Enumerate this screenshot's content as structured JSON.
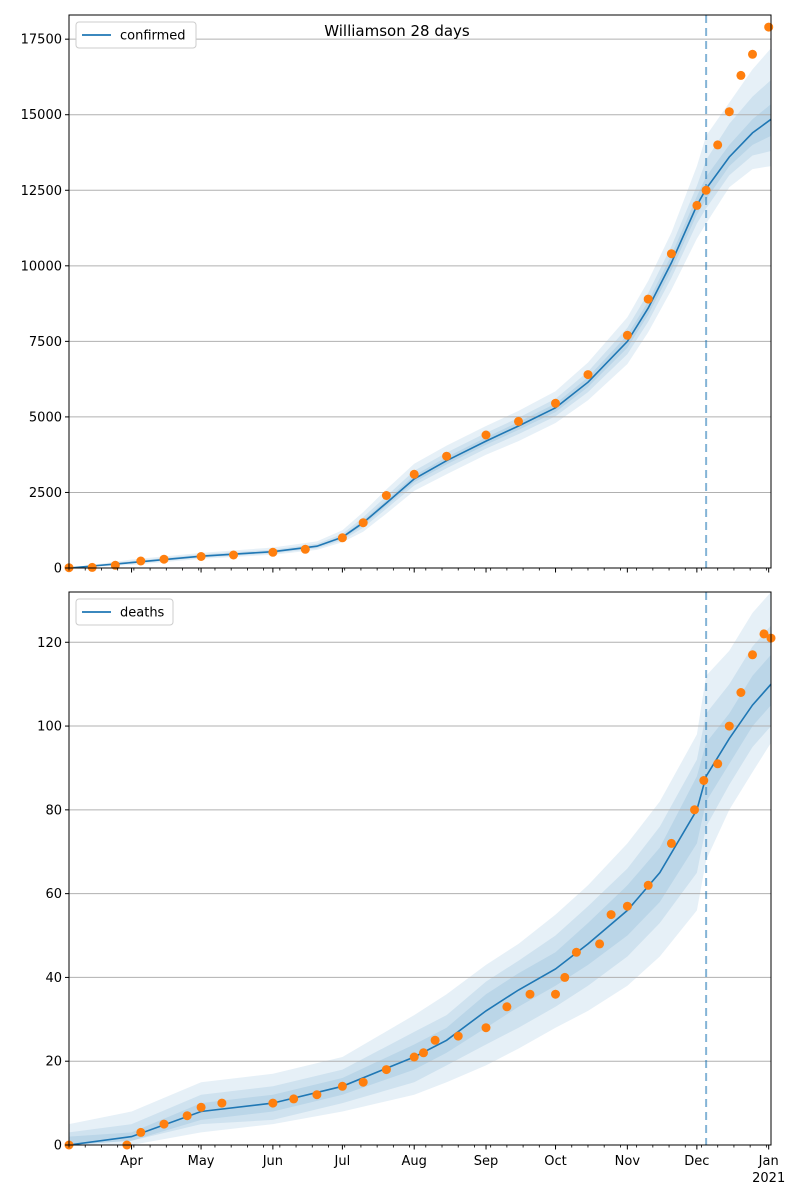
{
  "figure": {
    "title": "Williamson 28 days"
  },
  "colors": {
    "line": "#1f77b4",
    "points": "#ff7f0e",
    "band": "#1f77b4",
    "grid": "#b0b0b0",
    "vline": "#1f77b4"
  },
  "chart_data": [
    {
      "type": "line",
      "title": "Williamson 28 days",
      "legend": {
        "label": "confirmed",
        "placement": "top-left"
      },
      "xaxis": {
        "start": "2020-03-05",
        "end": "2021-01-02",
        "major_ticks": [
          {
            "date": "2020-04-01",
            "label": "Apr"
          },
          {
            "date": "2020-05-01",
            "label": "May"
          },
          {
            "date": "2020-06-01",
            "label": "Jun"
          },
          {
            "date": "2020-07-01",
            "label": "Jul"
          },
          {
            "date": "2020-08-01",
            "label": "Aug"
          },
          {
            "date": "2020-09-01",
            "label": "Sep"
          },
          {
            "date": "2020-10-01",
            "label": "Oct"
          },
          {
            "date": "2020-11-01",
            "label": "Nov"
          },
          {
            "date": "2020-12-01",
            "label": "Dec"
          },
          {
            "date": "2021-01-01",
            "label": "Jan",
            "sublabel": "2021"
          }
        ]
      },
      "ylim": [
        0,
        18300
      ],
      "yticks": [
        0,
        2500,
        5000,
        7500,
        10000,
        12500,
        15000,
        17500
      ],
      "grid": "y",
      "forecast_start": "2020-12-05",
      "model": [
        [
          "2020-03-05",
          0
        ],
        [
          "2020-04-01",
          180
        ],
        [
          "2020-05-01",
          390
        ],
        [
          "2020-06-01",
          540
        ],
        [
          "2020-06-20",
          720
        ],
        [
          "2020-07-01",
          1020
        ],
        [
          "2020-07-10",
          1500
        ],
        [
          "2020-07-20",
          2150
        ],
        [
          "2020-08-01",
          2950
        ],
        [
          "2020-08-15",
          3550
        ],
        [
          "2020-09-01",
          4200
        ],
        [
          "2020-09-15",
          4700
        ],
        [
          "2020-10-01",
          5300
        ],
        [
          "2020-10-15",
          6150
        ],
        [
          "2020-11-01",
          7500
        ],
        [
          "2020-11-10",
          8600
        ],
        [
          "2020-11-20",
          10100
        ],
        [
          "2020-12-01",
          12000
        ],
        [
          "2020-12-05",
          12550
        ],
        [
          "2020-12-15",
          13600
        ],
        [
          "2020-12-25",
          14400
        ],
        [
          "2021-01-02",
          14850
        ]
      ],
      "bands": [
        {
          "level": "outer",
          "lower": [
            0,
            100,
            300,
            440,
            600,
            850,
            1200,
            1800,
            2550,
            3100,
            3750,
            4200,
            4800,
            5550,
            6750,
            7800,
            9200,
            10900,
            11400,
            12600,
            13200,
            13300
          ],
          "upper": [
            0,
            280,
            500,
            680,
            880,
            1250,
            1850,
            2600,
            3450,
            4050,
            4700,
            5200,
            5850,
            6800,
            8300,
            9500,
            11100,
            13300,
            14300,
            15400,
            16500,
            17200
          ]
        },
        {
          "level": "middle",
          "lower": [
            0,
            140,
            340,
            480,
            650,
            920,
            1330,
            1960,
            2730,
            3300,
            3950,
            4430,
            5020,
            5820,
            7080,
            8150,
            9600,
            11400,
            11900,
            13000,
            13650,
            13800
          ],
          "upper": [
            0,
            230,
            450,
            610,
            800,
            1130,
            1680,
            2380,
            3220,
            3820,
            4470,
            4970,
            5600,
            6500,
            7950,
            9100,
            10650,
            12650,
            13500,
            14700,
            15600,
            16150
          ]
        },
        {
          "level": "inner",
          "lower": [
            0,
            160,
            365,
            510,
            685,
            970,
            1420,
            2060,
            2840,
            3430,
            4080,
            4570,
            5160,
            5990,
            7290,
            8380,
            9850,
            11700,
            12200,
            13300,
            14000,
            14300
          ],
          "upper": [
            0,
            200,
            415,
            570,
            755,
            1070,
            1580,
            2240,
            3060,
            3670,
            4320,
            4830,
            5440,
            6310,
            7710,
            8820,
            10350,
            12300,
            12950,
            14000,
            14850,
            15350
          ]
        }
      ],
      "observed": [
        [
          "2020-03-05",
          10
        ],
        [
          "2020-03-15",
          20
        ],
        [
          "2020-03-25",
          90
        ],
        [
          "2020-04-05",
          230
        ],
        [
          "2020-04-15",
          290
        ],
        [
          "2020-05-01",
          380
        ],
        [
          "2020-05-15",
          430
        ],
        [
          "2020-06-01",
          520
        ],
        [
          "2020-06-15",
          620
        ],
        [
          "2020-07-01",
          1000
        ],
        [
          "2020-07-10",
          1500
        ],
        [
          "2020-07-20",
          2400
        ],
        [
          "2020-08-01",
          3100
        ],
        [
          "2020-08-15",
          3700
        ],
        [
          "2020-09-01",
          4400
        ],
        [
          "2020-09-15",
          4850
        ],
        [
          "2020-10-01",
          5450
        ],
        [
          "2020-10-15",
          6400
        ],
        [
          "2020-11-01",
          7700
        ],
        [
          "2020-11-10",
          8900
        ],
        [
          "2020-11-20",
          10400
        ],
        [
          "2020-12-01",
          12000
        ],
        [
          "2020-12-05",
          12500
        ],
        [
          "2020-12-10",
          14000
        ],
        [
          "2020-12-15",
          15100
        ],
        [
          "2020-12-20",
          16300
        ],
        [
          "2020-12-25",
          17000
        ],
        [
          "2021-01-01",
          17900
        ]
      ]
    },
    {
      "type": "line",
      "legend": {
        "label": "deaths",
        "placement": "top-left"
      },
      "ylim": [
        0,
        132
      ],
      "yticks": [
        0,
        20,
        40,
        60,
        80,
        100,
        120
      ],
      "grid": "y",
      "forecast_start": "2020-12-05",
      "model": [
        [
          "2020-03-05",
          0
        ],
        [
          "2020-04-01",
          2
        ],
        [
          "2020-05-01",
          8
        ],
        [
          "2020-06-01",
          10
        ],
        [
          "2020-07-01",
          14
        ],
        [
          "2020-08-01",
          21
        ],
        [
          "2020-08-15",
          25
        ],
        [
          "2020-09-01",
          32
        ],
        [
          "2020-09-15",
          37
        ],
        [
          "2020-10-01",
          42
        ],
        [
          "2020-10-15",
          48
        ],
        [
          "2020-11-01",
          56
        ],
        [
          "2020-11-15",
          65
        ],
        [
          "2020-12-01",
          80
        ],
        [
          "2020-12-05",
          88
        ],
        [
          "2020-12-15",
          97
        ],
        [
          "2020-12-25",
          105
        ],
        [
          "2021-01-02",
          110
        ]
      ],
      "bands": [
        {
          "level": "outer",
          "lower": [
            0,
            0,
            3,
            5,
            8,
            12,
            15,
            19,
            23,
            28,
            32,
            38,
            45,
            56,
            68,
            80,
            89,
            96
          ],
          "upper": [
            5,
            8,
            15,
            17,
            21,
            31,
            36,
            43,
            48,
            55,
            62,
            72,
            82,
            98,
            112,
            118,
            127,
            132
          ]
        },
        {
          "level": "middle",
          "lower": [
            0,
            1,
            5,
            6,
            10,
            15,
            19,
            24,
            28,
            33,
            38,
            45,
            53,
            65,
            76,
            86,
            95,
            100
          ],
          "upper": [
            3,
            5,
            12,
            14,
            18,
            27,
            31,
            39,
            44,
            50,
            57,
            66,
            76,
            92,
            103,
            110,
            119,
            124
          ]
        },
        {
          "level": "inner",
          "lower": [
            0,
            1,
            6,
            8,
            12,
            18,
            22,
            28,
            33,
            38,
            43,
            50,
            58,
            72,
            82,
            91,
            100,
            105
          ],
          "upper": [
            2,
            3,
            10,
            12,
            16,
            24,
            28,
            36,
            41,
            46,
            53,
            62,
            71,
            88,
            96,
            103,
            112,
            117
          ]
        }
      ],
      "observed": [
        [
          "2020-03-05",
          0
        ],
        [
          "2020-03-30",
          0
        ],
        [
          "2020-04-05",
          3
        ],
        [
          "2020-04-15",
          5
        ],
        [
          "2020-04-25",
          7
        ],
        [
          "2020-05-01",
          9
        ],
        [
          "2020-05-10",
          10
        ],
        [
          "2020-06-01",
          10
        ],
        [
          "2020-06-10",
          11
        ],
        [
          "2020-06-20",
          12
        ],
        [
          "2020-07-01",
          14
        ],
        [
          "2020-07-10",
          15
        ],
        [
          "2020-07-20",
          18
        ],
        [
          "2020-08-01",
          21
        ],
        [
          "2020-08-05",
          22
        ],
        [
          "2020-08-10",
          25
        ],
        [
          "2020-08-20",
          26
        ],
        [
          "2020-09-01",
          28
        ],
        [
          "2020-09-10",
          33
        ],
        [
          "2020-09-20",
          36
        ],
        [
          "2020-10-01",
          36
        ],
        [
          "2020-10-05",
          40
        ],
        [
          "2020-10-10",
          46
        ],
        [
          "2020-10-20",
          48
        ],
        [
          "2020-10-25",
          55
        ],
        [
          "2020-11-01",
          57
        ],
        [
          "2020-11-10",
          62
        ],
        [
          "2020-11-20",
          72
        ],
        [
          "2020-11-30",
          80
        ],
        [
          "2020-12-04",
          87
        ],
        [
          "2020-12-10",
          91
        ],
        [
          "2020-12-15",
          100
        ],
        [
          "2020-12-20",
          108
        ],
        [
          "2020-12-25",
          117
        ],
        [
          "2020-12-30",
          122
        ],
        [
          "2021-01-02",
          121
        ]
      ]
    }
  ]
}
